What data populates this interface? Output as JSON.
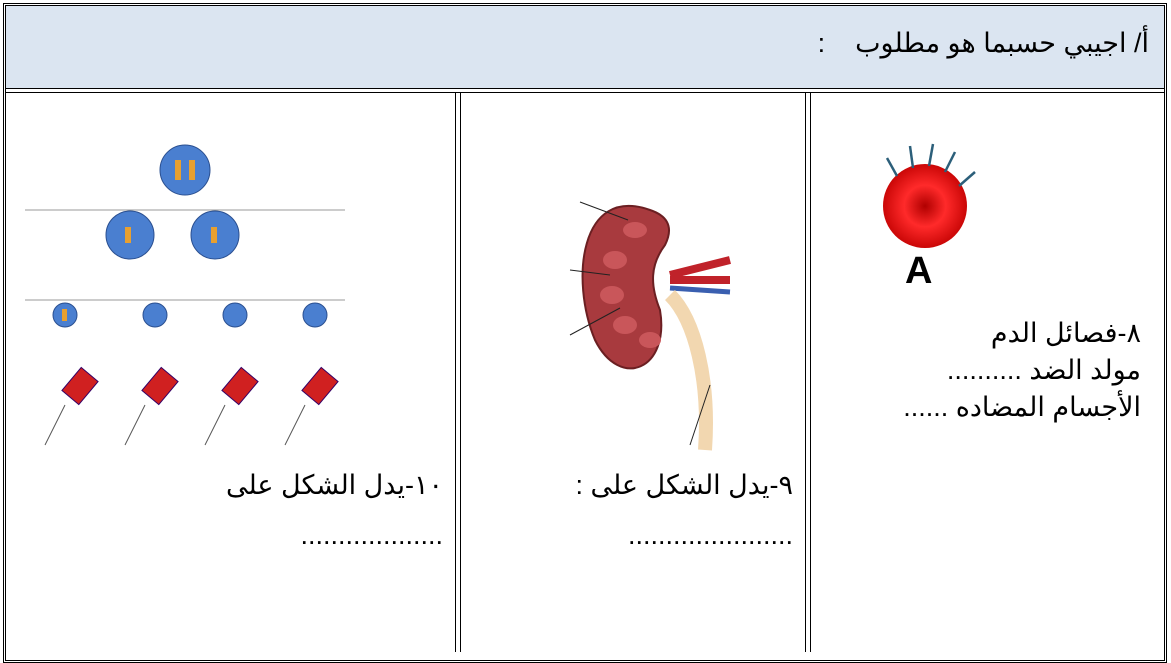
{
  "header": {
    "title": "أ/ اجيبي حسبما هو مطلوب    :"
  },
  "columns": [
    {
      "label": "A",
      "lines": [
        "٨-فصائل الدم",
        "مولد الضد ..........",
        "الأجسام المضاده ......"
      ]
    },
    {
      "lines": [
        "٩-يدل الشكل على :",
        "......................"
      ]
    },
    {
      "lines": [
        "١٠-يدل الشكل على",
        "..................."
      ]
    }
  ]
}
